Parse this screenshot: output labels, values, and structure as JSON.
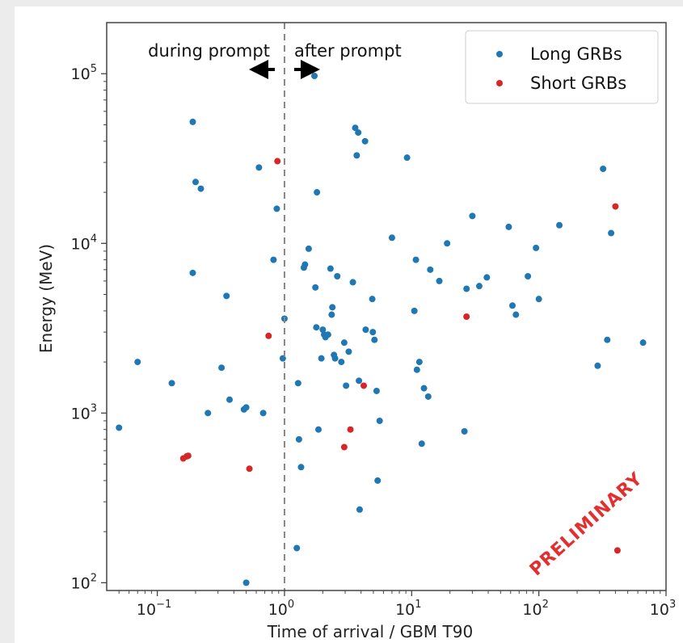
{
  "chart_data": {
    "type": "scatter",
    "xlabel": "Time of arrival / GBM T90",
    "ylabel": "Energy (MeV)",
    "xscale": "log",
    "yscale": "log",
    "xlim": [
      0.04,
      1000
    ],
    "ylim": [
      90,
      200000
    ],
    "x_ticks": [
      {
        "value": 0.1,
        "base": "10",
        "exp": "−1"
      },
      {
        "value": 1,
        "base": "10",
        "exp": "0"
      },
      {
        "value": 10,
        "base": "10",
        "exp": "1"
      },
      {
        "value": 100,
        "base": "10",
        "exp": "2"
      },
      {
        "value": 1000,
        "base": "10",
        "exp": "3"
      }
    ],
    "y_ticks": [
      {
        "value": 100,
        "base": "10",
        "exp": "2"
      },
      {
        "value": 1000,
        "base": "10",
        "exp": "3"
      },
      {
        "value": 10000,
        "base": "10",
        "exp": "4"
      },
      {
        "value": 100000,
        "base": "10",
        "exp": "5"
      }
    ],
    "grid": false,
    "legend_position": "top-right",
    "reference_line": {
      "x": 1,
      "style": "dashed",
      "color": "#888888"
    },
    "annotations": {
      "left": "during prompt",
      "right": "after prompt"
    },
    "watermark": "PRELIMINARY",
    "series": [
      {
        "name": "Long GRBs",
        "color": "#1f77b4",
        "points": [
          [
            0.05,
            820
          ],
          [
            0.07,
            2000
          ],
          [
            0.13,
            1500
          ],
          [
            0.19,
            52000
          ],
          [
            0.19,
            6700
          ],
          [
            0.2,
            23000
          ],
          [
            0.22,
            21000
          ],
          [
            0.25,
            1000
          ],
          [
            0.32,
            1850
          ],
          [
            0.35,
            4900
          ],
          [
            0.37,
            1200
          ],
          [
            0.48,
            1050
          ],
          [
            0.5,
            1080
          ],
          [
            0.5,
            100
          ],
          [
            0.63,
            28000
          ],
          [
            0.68,
            1000
          ],
          [
            0.82,
            8000
          ],
          [
            0.87,
            16000
          ],
          [
            0.97,
            2100
          ],
          [
            1.0,
            3600
          ],
          [
            1.25,
            160
          ],
          [
            1.28,
            1500
          ],
          [
            1.3,
            700
          ],
          [
            1.35,
            480
          ],
          [
            1.42,
            7200
          ],
          [
            1.45,
            7500
          ],
          [
            1.55,
            9300
          ],
          [
            1.72,
            97000
          ],
          [
            1.75,
            5500
          ],
          [
            1.78,
            3200
          ],
          [
            1.8,
            20000
          ],
          [
            1.85,
            800
          ],
          [
            1.95,
            2100
          ],
          [
            2.0,
            3100
          ],
          [
            2.05,
            2900
          ],
          [
            2.1,
            2800
          ],
          [
            2.2,
            2900
          ],
          [
            2.3,
            7100
          ],
          [
            2.35,
            3800
          ],
          [
            2.38,
            4200
          ],
          [
            2.45,
            2200
          ],
          [
            2.5,
            2100
          ],
          [
            2.6,
            6400
          ],
          [
            2.8,
            2000
          ],
          [
            2.95,
            2600
          ],
          [
            3.05,
            1450
          ],
          [
            3.2,
            2300
          ],
          [
            3.45,
            5900
          ],
          [
            3.6,
            48000
          ],
          [
            3.7,
            33000
          ],
          [
            3.8,
            45000
          ],
          [
            3.85,
            1550
          ],
          [
            3.9,
            270
          ],
          [
            4.3,
            40000
          ],
          [
            4.35,
            3100
          ],
          [
            4.9,
            4700
          ],
          [
            4.95,
            3000
          ],
          [
            5.1,
            2700
          ],
          [
            5.3,
            1350
          ],
          [
            5.4,
            400
          ],
          [
            5.6,
            900
          ],
          [
            7.0,
            10800
          ],
          [
            9.2,
            32000
          ],
          [
            10.5,
            4000
          ],
          [
            10.8,
            8000
          ],
          [
            11.0,
            1800
          ],
          [
            11.5,
            2000
          ],
          [
            12.0,
            660
          ],
          [
            12.5,
            1400
          ],
          [
            13.5,
            1250
          ],
          [
            14.0,
            7000
          ],
          [
            16.5,
            6000
          ],
          [
            19.0,
            10000
          ],
          [
            26.0,
            780
          ],
          [
            27.0,
            5400
          ],
          [
            30.0,
            14500
          ],
          [
            34.0,
            5600
          ],
          [
            39.0,
            6300
          ],
          [
            58.0,
            12500
          ],
          [
            62.0,
            4300
          ],
          [
            66.0,
            3800
          ],
          [
            82.0,
            6400
          ],
          [
            95.0,
            9400
          ],
          [
            100.0,
            4700
          ],
          [
            145.0,
            12800
          ],
          [
            290.0,
            1900
          ],
          [
            320.0,
            27500
          ],
          [
            345.0,
            2700
          ],
          [
            370.0,
            11500
          ],
          [
            660.0,
            2600
          ]
        ]
      },
      {
        "name": "Short GRBs",
        "color": "#d62728",
        "points": [
          [
            0.16,
            540
          ],
          [
            0.17,
            555
          ],
          [
            0.175,
            560
          ],
          [
            0.53,
            470
          ],
          [
            0.75,
            2850
          ],
          [
            0.88,
            30500
          ],
          [
            2.95,
            630
          ],
          [
            3.3,
            800
          ],
          [
            4.2,
            1450
          ],
          [
            27.0,
            3700
          ],
          [
            400.0,
            16500
          ],
          [
            415.0,
            155
          ]
        ]
      }
    ]
  }
}
